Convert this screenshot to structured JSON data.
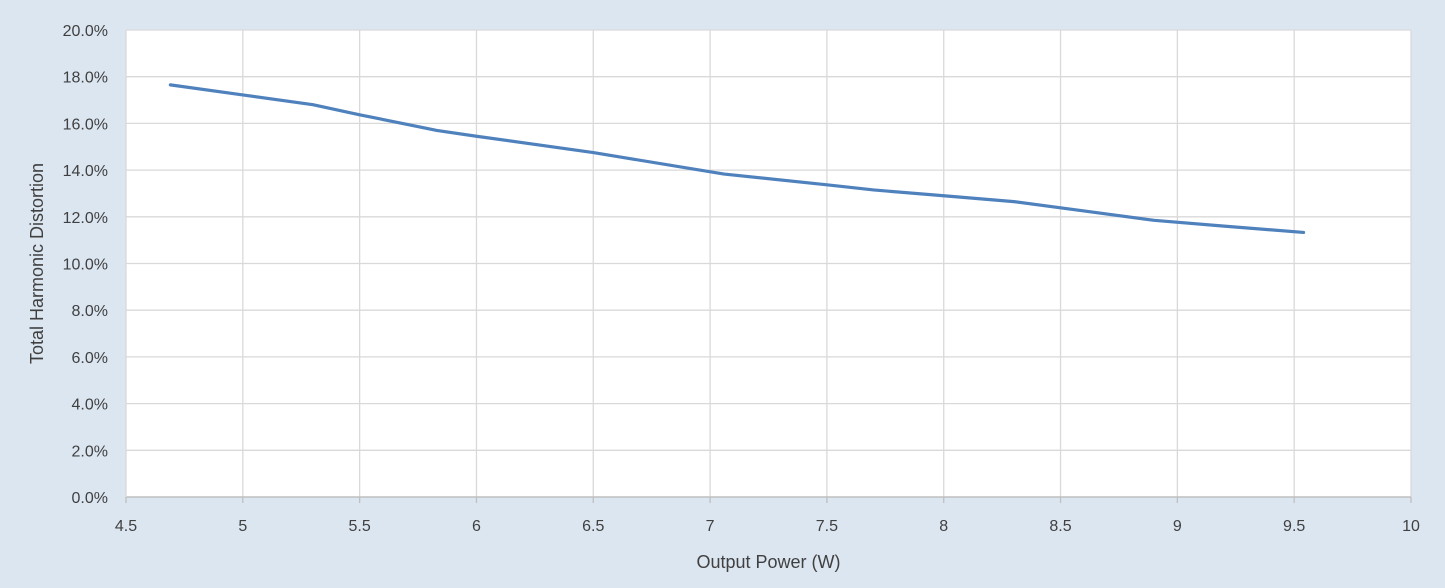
{
  "chart_data": {
    "type": "line",
    "title": "",
    "xlabel": "Output Power (W)",
    "ylabel": "Total Harmonic Distortion",
    "xlim": [
      4.5,
      10
    ],
    "ylim": [
      0,
      0.2
    ],
    "x_ticks": [
      "4.5",
      "5",
      "5.5",
      "6",
      "6.5",
      "7",
      "7.5",
      "8",
      "8.5",
      "9",
      "9.5",
      "10"
    ],
    "y_ticks": [
      "0.0%",
      "2.0%",
      "4.0%",
      "6.0%",
      "8.0%",
      "10.0%",
      "12.0%",
      "14.0%",
      "16.0%",
      "18.0%",
      "20.0%"
    ],
    "grid": true,
    "legend": "none",
    "series": [
      {
        "color": "#4f81bd",
        "points": [
          {
            "x": 4.69,
            "y": 0.1765
          },
          {
            "x": 5.0,
            "y": 0.1722
          },
          {
            "x": 5.3,
            "y": 0.168
          },
          {
            "x": 5.5,
            "y": 0.1637
          },
          {
            "x": 5.83,
            "y": 0.157
          },
          {
            "x": 6.0,
            "y": 0.1545
          },
          {
            "x": 6.5,
            "y": 0.1475
          },
          {
            "x": 7.06,
            "y": 0.1383
          },
          {
            "x": 7.5,
            "y": 0.1337
          },
          {
            "x": 7.7,
            "y": 0.1315
          },
          {
            "x": 8.0,
            "y": 0.129
          },
          {
            "x": 8.3,
            "y": 0.1265
          },
          {
            "x": 8.6,
            "y": 0.1225
          },
          {
            "x": 8.9,
            "y": 0.1185
          },
          {
            "x": 9.2,
            "y": 0.116
          },
          {
            "x": 9.54,
            "y": 0.1133
          }
        ]
      }
    ]
  }
}
